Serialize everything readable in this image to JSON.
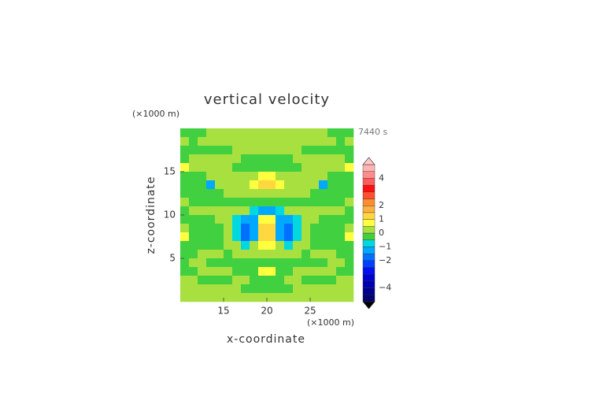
{
  "chart_data": {
    "type": "contour",
    "title": "vertical velocity",
    "x_label": "x-coordinate",
    "y_label": "z-coordinate",
    "x_unit": "(×1000 m)",
    "y_unit": "(×1000 m)",
    "time": "7440 s",
    "xlim": [
      10,
      30
    ],
    "ylim": [
      0,
      20
    ],
    "xticks": [
      15,
      20,
      25
    ],
    "yticks": [
      5,
      10,
      15
    ],
    "x": [
      10.5,
      11.5,
      12.5,
      13.5,
      14.5,
      15.5,
      16.5,
      17.5,
      18.5,
      19.5,
      20.5,
      21.5,
      22.5,
      23.5,
      24.5,
      25.5,
      26.5,
      27.5,
      28.5,
      29.5
    ],
    "y": [
      19.5,
      18.5,
      17.5,
      16.5,
      15.5,
      14.5,
      13.5,
      12.5,
      11.5,
      10.5,
      9.5,
      8.5,
      7.5,
      6.5,
      5.5,
      4.5,
      3.5,
      2.5,
      1.5,
      0.5
    ],
    "values": [
      [
        -0.2,
        -0.2,
        -0.2,
        0.2,
        0.2,
        0.2,
        0.2,
        0.2,
        0.2,
        0.2,
        0.2,
        0.2,
        0.2,
        0.2,
        0.2,
        0.2,
        0.2,
        -0.2,
        -0.2,
        -0.2
      ],
      [
        0.2,
        -0.2,
        0.2,
        0.2,
        0.2,
        0.2,
        0.2,
        0.2,
        0.2,
        0.2,
        0.2,
        0.2,
        0.2,
        0.2,
        0.2,
        0.2,
        0.2,
        0.2,
        -0.2,
        0.2
      ],
      [
        -0.2,
        -0.2,
        -0.2,
        -0.2,
        -0.2,
        -0.2,
        0.2,
        0.2,
        0.2,
        0.2,
        0.2,
        0.2,
        0.2,
        0.2,
        -0.2,
        -0.2,
        -0.2,
        -0.2,
        -0.2,
        -0.2
      ],
      [
        -0.2,
        0.2,
        0.2,
        0.2,
        0.2,
        0.2,
        0.2,
        -0.2,
        -0.2,
        -0.2,
        -0.2,
        -0.2,
        -0.2,
        0.2,
        0.2,
        0.2,
        0.2,
        0.2,
        0.2,
        -0.2
      ],
      [
        0.7,
        0.2,
        0.2,
        0.2,
        0.2,
        0.2,
        -0.2,
        -0.2,
        -0.2,
        -0.2,
        -0.2,
        -0.2,
        -0.2,
        -0.2,
        0.2,
        0.2,
        0.2,
        0.2,
        0.2,
        0.7
      ],
      [
        -0.2,
        -0.2,
        -0.2,
        0.2,
        0.2,
        0.2,
        0.2,
        0.2,
        0.2,
        0.7,
        0.7,
        0.2,
        0.2,
        0.2,
        0.2,
        0.2,
        0.2,
        -0.2,
        -0.2,
        -0.2
      ],
      [
        -0.2,
        -0.2,
        -0.2,
        -1.2,
        0.2,
        0.2,
        0.2,
        0.2,
        0.7,
        1.2,
        1.2,
        0.7,
        0.2,
        0.2,
        0.2,
        0.2,
        -1.2,
        -0.2,
        -0.2,
        -0.2
      ],
      [
        -0.2,
        -0.2,
        -0.2,
        -0.2,
        -0.2,
        0.2,
        0.2,
        0.2,
        0.2,
        0.2,
        0.2,
        0.2,
        0.2,
        0.2,
        0.2,
        -0.2,
        -0.2,
        -0.2,
        -0.2,
        -0.2
      ],
      [
        0.2,
        -0.2,
        -0.2,
        -0.2,
        -0.2,
        -0.2,
        -0.2,
        -0.2,
        -0.2,
        -0.2,
        -0.2,
        -0.2,
        -0.2,
        -0.2,
        -0.2,
        -0.2,
        -0.2,
        -0.2,
        -0.2,
        0.2
      ],
      [
        -0.2,
        0.2,
        0.2,
        0.2,
        0.2,
        0.2,
        0.2,
        0.2,
        -0.7,
        -1.2,
        -1.2,
        -0.7,
        0.2,
        0.2,
        0.2,
        0.2,
        0.2,
        0.2,
        0.2,
        -0.2
      ],
      [
        -0.2,
        -0.2,
        -0.2,
        -0.2,
        0.2,
        0.2,
        -0.7,
        -1.2,
        -1.2,
        0.7,
        0.7,
        -1.2,
        -1.2,
        -0.7,
        0.2,
        0.2,
        -0.2,
        -0.2,
        -0.2,
        -0.2
      ],
      [
        0.2,
        -0.2,
        -0.2,
        -0.2,
        -0.2,
        0.2,
        -0.7,
        -1.7,
        -1.2,
        1.2,
        1.2,
        -1.2,
        -1.7,
        -0.7,
        0.2,
        -0.2,
        -0.2,
        -0.2,
        -0.2,
        0.2
      ],
      [
        0.7,
        -0.2,
        -0.2,
        -0.2,
        -0.2,
        0.2,
        -0.7,
        -1.7,
        -1.2,
        1.2,
        1.2,
        -1.2,
        -1.7,
        -0.7,
        0.2,
        -0.2,
        -0.2,
        -0.2,
        -0.2,
        0.7
      ],
      [
        -0.2,
        -0.2,
        -0.2,
        -0.2,
        -0.2,
        0.2,
        0.2,
        -0.7,
        0.2,
        0.7,
        0.7,
        0.2,
        -0.7,
        0.2,
        0.2,
        -0.2,
        -0.2,
        -0.2,
        -0.2,
        -0.2
      ],
      [
        -0.2,
        -0.2,
        0.2,
        0.2,
        0.2,
        -0.2,
        0.2,
        0.2,
        0.2,
        0.2,
        0.2,
        0.2,
        0.2,
        0.2,
        -0.2,
        0.2,
        0.2,
        0.2,
        -0.2,
        -0.2
      ],
      [
        -0.2,
        0.2,
        0.2,
        -0.2,
        -0.2,
        -0.2,
        -0.2,
        -0.2,
        -0.2,
        -0.2,
        -0.2,
        -0.2,
        -0.2,
        -0.2,
        -0.2,
        -0.2,
        -0.2,
        0.2,
        0.2,
        -0.2
      ],
      [
        -0.2,
        -0.2,
        0.2,
        0.2,
        0.2,
        0.2,
        -0.2,
        -0.2,
        -0.2,
        0.7,
        0.7,
        -0.2,
        -0.2,
        0.2,
        0.2,
        0.2,
        0.2,
        0.2,
        -0.2,
        -0.2
      ],
      [
        0.2,
        0.2,
        -0.2,
        -0.2,
        -0.2,
        -0.2,
        0.2,
        0.2,
        -0.2,
        -0.2,
        -0.2,
        -0.2,
        0.2,
        0.2,
        -0.2,
        -0.2,
        -0.2,
        -0.2,
        0.2,
        0.2
      ],
      [
        0.2,
        0.2,
        0.2,
        0.2,
        0.2,
        0.2,
        0.2,
        -0.2,
        -0.2,
        -0.2,
        -0.2,
        -0.2,
        -0.2,
        0.2,
        0.2,
        0.2,
        0.2,
        0.2,
        0.2,
        0.2
      ],
      [
        0.2,
        0.2,
        0.2,
        0.2,
        0.2,
        0.2,
        0.2,
        0.2,
        0.2,
        0.2,
        0.2,
        0.2,
        0.2,
        0.2,
        0.2,
        0.2,
        0.2,
        0.2,
        0.2,
        0.2
      ]
    ],
    "levels": [
      -5,
      -4.5,
      -4,
      -3.5,
      -3,
      -2.5,
      -2,
      -1.5,
      -1,
      -0.5,
      0,
      0.5,
      1,
      1.5,
      2,
      2.5,
      3,
      3.5,
      4,
      4.5,
      5
    ],
    "colors": [
      "#000070",
      "#000090",
      "#0000b0",
      "#0000d0",
      "#0010f0",
      "#0040ff",
      "#0070ff",
      "#00a8ff",
      "#00d8e0",
      "#40d040",
      "#a8e040",
      "#ffff40",
      "#ffd840",
      "#ffb040",
      "#ff8c30",
      "#ff5030",
      "#ff1010",
      "#ff5c5c",
      "#ff8c8c",
      "#ffb4b4"
    ],
    "over_color": "#ffc8c8",
    "under_color": "#000000",
    "colorbar_ticks": [
      {
        "value": -4,
        "label": "−4"
      },
      {
        "value": -2,
        "label": "−2"
      },
      {
        "value": -1,
        "label": "−1"
      },
      0,
      1,
      2,
      4
    ]
  }
}
